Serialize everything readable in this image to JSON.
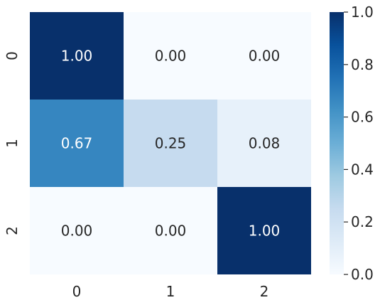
{
  "chart_data": {
    "type": "heatmap",
    "title": "",
    "xlabel": "",
    "ylabel": "",
    "x_categories": [
      "0",
      "1",
      "2"
    ],
    "y_categories": [
      "0",
      "1",
      "2"
    ],
    "values": [
      [
        1.0,
        0.0,
        0.0
      ],
      [
        0.67,
        0.25,
        0.08
      ],
      [
        0.0,
        0.0,
        1.0
      ]
    ],
    "cell_labels": [
      [
        "1.00",
        "0.00",
        "0.00"
      ],
      [
        "0.67",
        "0.25",
        "0.08"
      ],
      [
        "0.00",
        "0.00",
        "1.00"
      ]
    ],
    "colormap": "Blues",
    "color_low": "#f7fbff",
    "color_high": "#08306b",
    "label_color_dark": "#262626",
    "label_color_light": "#ffffff",
    "colorbar": {
      "vmin": 0.0,
      "vmax": 1.0,
      "ticks": [
        "0.0",
        "0.2",
        "0.4",
        "0.6",
        "0.8",
        "1.0"
      ],
      "tick_values": [
        0.0,
        0.2,
        0.4,
        0.6,
        0.8,
        1.0
      ]
    }
  }
}
